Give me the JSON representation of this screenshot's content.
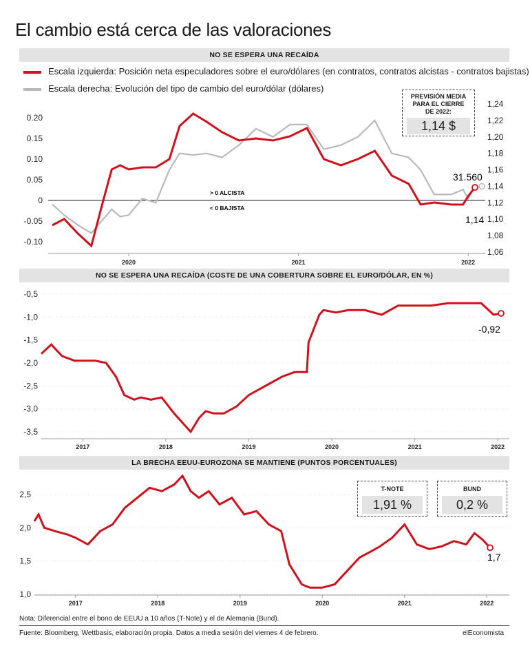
{
  "title": "El cambio está cerca de las valoraciones",
  "colors": {
    "red": "#d0111b",
    "gray": "#b9b9b9",
    "band": "#e3e3e3"
  },
  "panel1": {
    "header": "NO SE ESPERA UNA RECAÍDA",
    "legend": [
      "Escala izquierda: Posición neta especuladores sobre el euro/dólares (en contratos, contratos alcistas - contratos bajistas)",
      "Escala derecha: Evolución del tipo de cambio del euro/dólar (dólares)"
    ],
    "forecast": {
      "heading": "PREVISIÓN MEDIA PARA EL CIERRE DE 2022:",
      "value": "1,14 $"
    },
    "label_alcista": "> 0 ALCISTA",
    "label_bajista": "< 0 BAJISTA",
    "end_label_red": "31.560",
    "end_label_gray": "1,14"
  },
  "panel2": {
    "header": "NO SE ESPERA UNA RECAÍDA (COSTE DE UNA COBERTURA SOBRE EL EURO/DÓLAR, EN %)",
    "end_label": "-0,92"
  },
  "panel3": {
    "header": "LA BRECHA EEUU-EUROZONA SE MANTIENE (PUNTOS PORCENTUALES)",
    "tnote": {
      "label": "T-NOTE",
      "value": "1,91 %"
    },
    "bund": {
      "label": "BUND",
      "value": "0,2 %"
    },
    "end_label": "1,7"
  },
  "note": "Nota: Diferencial entre el bono de EEUU a 10 años (T-Note) y el de Alemania (Bund).",
  "source": "Fuente: Bloomberg, Wettbasis, elaboración propia. Datos a media sesión del viernes 4 de febrero.",
  "brand": "elEconomista",
  "chart_data": [
    {
      "type": "line",
      "x_ticks": [
        "2020",
        "2021",
        "2022"
      ],
      "y_ticks": [
        "0.20",
        "0.15",
        "0.10",
        "0.05",
        "0",
        "-0.05",
        "-0.10"
      ],
      "ylim": [
        -0.12,
        0.21
      ],
      "y2_ticks": [
        "1,24",
        "1,22",
        "1,20",
        "1,18",
        "1,16",
        "1,14",
        "1,12",
        "1,10",
        "1,08",
        "1,06"
      ],
      "y2lim": [
        1.06,
        1.24
      ],
      "x": [
        2019.55,
        2019.62,
        2019.7,
        2019.78,
        2019.85,
        2019.9,
        2019.95,
        2020.0,
        2020.08,
        2020.16,
        2020.24,
        2020.3,
        2020.38,
        2020.46,
        2020.55,
        2020.65,
        2020.75,
        2020.85,
        2020.95,
        2021.05,
        2021.15,
        2021.25,
        2021.35,
        2021.45,
        2021.55,
        2021.65,
        2021.72,
        2021.8,
        2021.9,
        2021.97,
        2022.0,
        2022.04
      ],
      "series": [
        {
          "values": [
            -0.06,
            -0.045,
            -0.08,
            -0.11,
            0.0,
            0.075,
            0.085,
            0.075,
            0.08,
            0.08,
            0.1,
            0.18,
            0.21,
            0.19,
            0.165,
            0.145,
            0.15,
            0.145,
            0.155,
            0.175,
            0.1,
            0.085,
            0.1,
            0.12,
            0.06,
            0.04,
            -0.01,
            -0.005,
            -0.01,
            -0.01,
            0.01,
            0.0316
          ]
        },
        {
          "values": [
            1.118,
            1.105,
            1.093,
            1.083,
            1.1,
            1.112,
            1.103,
            1.105,
            1.125,
            1.12,
            1.16,
            1.18,
            1.178,
            1.18,
            1.175,
            1.19,
            1.21,
            1.2,
            1.215,
            1.215,
            1.185,
            1.19,
            1.2,
            1.22,
            1.18,
            1.175,
            1.16,
            1.13,
            1.13,
            1.136,
            1.125,
            1.14
          ]
        }
      ]
    },
    {
      "type": "line",
      "x_ticks": [
        "2017",
        "2018",
        "2019",
        "2020",
        "2021",
        "2022"
      ],
      "y_ticks": [
        "-0,5",
        "-1,0",
        "-1,5",
        "-2,0",
        "-2,5",
        "-3,0",
        "-3,5"
      ],
      "ylim": [
        -3.6,
        -0.4
      ],
      "x": [
        2016.5,
        2016.62,
        2016.75,
        2016.9,
        2017.05,
        2017.15,
        2017.28,
        2017.4,
        2017.5,
        2017.62,
        2017.7,
        2017.82,
        2017.95,
        2018.1,
        2018.3,
        2018.4,
        2018.48,
        2018.58,
        2018.7,
        2018.85,
        2019.0,
        2019.1,
        2019.25,
        2019.4,
        2019.55,
        2019.7,
        2019.72,
        2019.85,
        2019.9,
        2020.05,
        2020.2,
        2020.4,
        2020.5,
        2020.6,
        2020.8,
        2021.0,
        2021.2,
        2021.4,
        2021.6,
        2021.8,
        2021.95,
        2022.04
      ],
      "series": [
        {
          "values": [
            -1.8,
            -1.6,
            -1.85,
            -1.95,
            -1.95,
            -1.95,
            -2.0,
            -2.3,
            -2.7,
            -2.8,
            -2.75,
            -2.8,
            -2.75,
            -3.1,
            -3.5,
            -3.2,
            -3.05,
            -3.1,
            -3.1,
            -2.95,
            -2.7,
            -2.6,
            -2.45,
            -2.3,
            -2.2,
            -2.2,
            -1.55,
            -0.95,
            -0.85,
            -0.9,
            -0.85,
            -0.85,
            -0.9,
            -0.95,
            -0.75,
            -0.75,
            -0.75,
            -0.7,
            -0.7,
            -0.7,
            -0.95,
            -0.92
          ]
        }
      ]
    },
    {
      "type": "line",
      "x_ticks": [
        "2017",
        "2018",
        "2019",
        "2020",
        "2021",
        "2022"
      ],
      "y_ticks": [
        "2,5",
        "2,0",
        "1,5",
        "1,0"
      ],
      "ylim": [
        1.0,
        2.8
      ],
      "x": [
        2016.5,
        2016.55,
        2016.62,
        2016.75,
        2016.9,
        2017.0,
        2017.15,
        2017.3,
        2017.45,
        2017.6,
        2017.75,
        2017.9,
        2018.05,
        2018.2,
        2018.3,
        2018.4,
        2018.5,
        2018.62,
        2018.75,
        2018.9,
        2019.05,
        2019.2,
        2019.35,
        2019.5,
        2019.6,
        2019.75,
        2019.85,
        2020.0,
        2020.15,
        2020.3,
        2020.45,
        2020.6,
        2020.7,
        2020.85,
        2021.0,
        2021.15,
        2021.3,
        2021.45,
        2021.6,
        2021.75,
        2021.85,
        2021.95,
        2022.04
      ],
      "series": [
        {
          "values": [
            2.1,
            2.2,
            2.0,
            1.95,
            1.9,
            1.85,
            1.75,
            1.95,
            2.05,
            2.3,
            2.45,
            2.6,
            2.55,
            2.65,
            2.78,
            2.55,
            2.45,
            2.55,
            2.35,
            2.45,
            2.2,
            2.25,
            2.05,
            1.95,
            1.45,
            1.15,
            1.1,
            1.1,
            1.15,
            1.35,
            1.55,
            1.65,
            1.72,
            1.85,
            2.05,
            1.75,
            1.68,
            1.72,
            1.8,
            1.75,
            1.92,
            1.82,
            1.7
          ]
        }
      ]
    }
  ]
}
